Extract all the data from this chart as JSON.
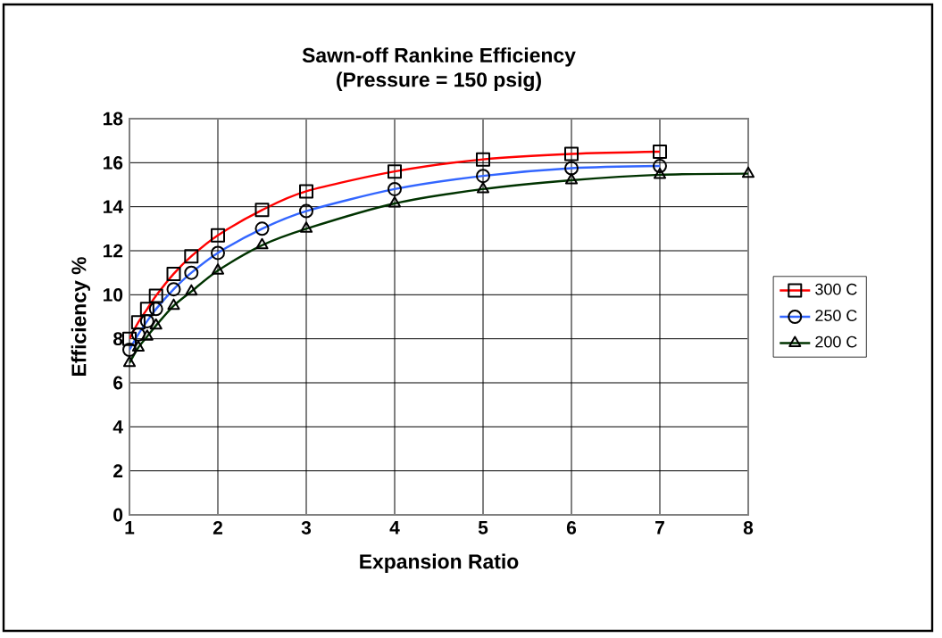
{
  "chart_data": {
    "type": "line",
    "title": "Sawn-off Rankine Efficiency",
    "subtitle": "(Pressure = 150 psig)",
    "xlabel": "Expansion Ratio",
    "ylabel": "Efficiency %",
    "series": [
      {
        "name": "300 C",
        "color": "#ff0000",
        "marker": "square",
        "x": [
          1,
          1.1,
          1.2,
          1.3,
          1.5,
          1.7,
          2,
          2.5,
          3,
          4,
          5,
          6,
          7
        ],
        "values": [
          8.0,
          8.75,
          9.35,
          9.95,
          10.95,
          11.75,
          12.7,
          13.85,
          14.7,
          15.6,
          16.15,
          16.4,
          16.5
        ]
      },
      {
        "name": "250 C",
        "color": "#3366ff",
        "marker": "circle",
        "x": [
          1,
          1.1,
          1.2,
          1.3,
          1.5,
          1.7,
          2,
          2.5,
          3,
          4,
          5,
          6,
          7
        ],
        "values": [
          7.5,
          8.2,
          8.8,
          9.35,
          10.25,
          11.0,
          11.9,
          13.0,
          13.8,
          14.8,
          15.4,
          15.75,
          15.85
        ]
      },
      {
        "name": "200 C",
        "color": "#003300",
        "marker": "triangle",
        "x": [
          1,
          1.1,
          1.2,
          1.3,
          1.5,
          1.7,
          2,
          2.5,
          3,
          4,
          5,
          6,
          7,
          8
        ],
        "values": [
          6.9,
          7.6,
          8.1,
          8.6,
          9.5,
          10.15,
          11.1,
          12.25,
          13.0,
          14.15,
          14.8,
          15.2,
          15.45,
          15.5
        ]
      }
    ],
    "xlim": [
      1,
      8
    ],
    "xticks": [
      1,
      2,
      3,
      4,
      5,
      6,
      7,
      8
    ],
    "ylim": [
      0,
      18
    ],
    "yticks": [
      0,
      2,
      4,
      6,
      8,
      10,
      12,
      14,
      16,
      18
    ],
    "grid": true,
    "legend": "right",
    "line_style": "solid"
  }
}
